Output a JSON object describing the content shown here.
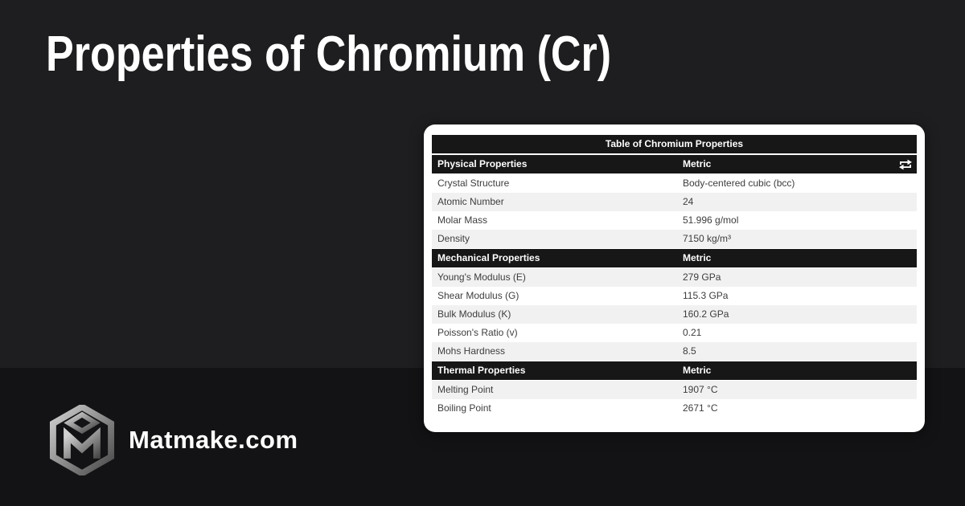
{
  "page": {
    "title": "Properties of Chromium (Cr)",
    "background_upper_color": "#1e1e20",
    "background_lower_color": "#131315"
  },
  "brand": {
    "name": "Matmake.com",
    "logo_icon": "matmake-cube-m-logo"
  },
  "card": {
    "background_color": "#ffffff",
    "table": {
      "title": "Table of Chromium Properties",
      "value_column_header": "Metric",
      "unit_toggle_icon": "swap-horizontal-icon",
      "header_bar_color": "#171717",
      "header_text_color": "#ffffff",
      "alt_row_color": "#f1f1f1",
      "row_text_color": "#3d3d3d",
      "sections": [
        {
          "header": "Physical Properties",
          "has_unit_toggle": true,
          "rows": [
            {
              "label": "Crystal Structure",
              "value": "Body-centered cubic (bcc)"
            },
            {
              "label": "Atomic Number",
              "value": "24"
            },
            {
              "label": "Molar Mass",
              "value": "51.996 g/mol"
            },
            {
              "label": "Density",
              "value": "7150 kg/m³"
            }
          ]
        },
        {
          "header": "Mechanical Properties",
          "has_unit_toggle": false,
          "rows": [
            {
              "label": "Young's Modulus (E)",
              "value": "279 GPa"
            },
            {
              "label": "Shear Modulus (G)",
              "value": "115.3 GPa"
            },
            {
              "label": "Bulk Modulus (K)",
              "value": "160.2 GPa"
            },
            {
              "label": "Poisson's Ratio (v)",
              "value": "0.21"
            },
            {
              "label": "Mohs Hardness",
              "value": "8.5"
            }
          ]
        },
        {
          "header": "Thermal Properties",
          "has_unit_toggle": false,
          "rows": [
            {
              "label": "Melting Point",
              "value": "1907 °C"
            },
            {
              "label": "Boiling Point",
              "value": "2671 °C"
            }
          ]
        }
      ]
    }
  }
}
